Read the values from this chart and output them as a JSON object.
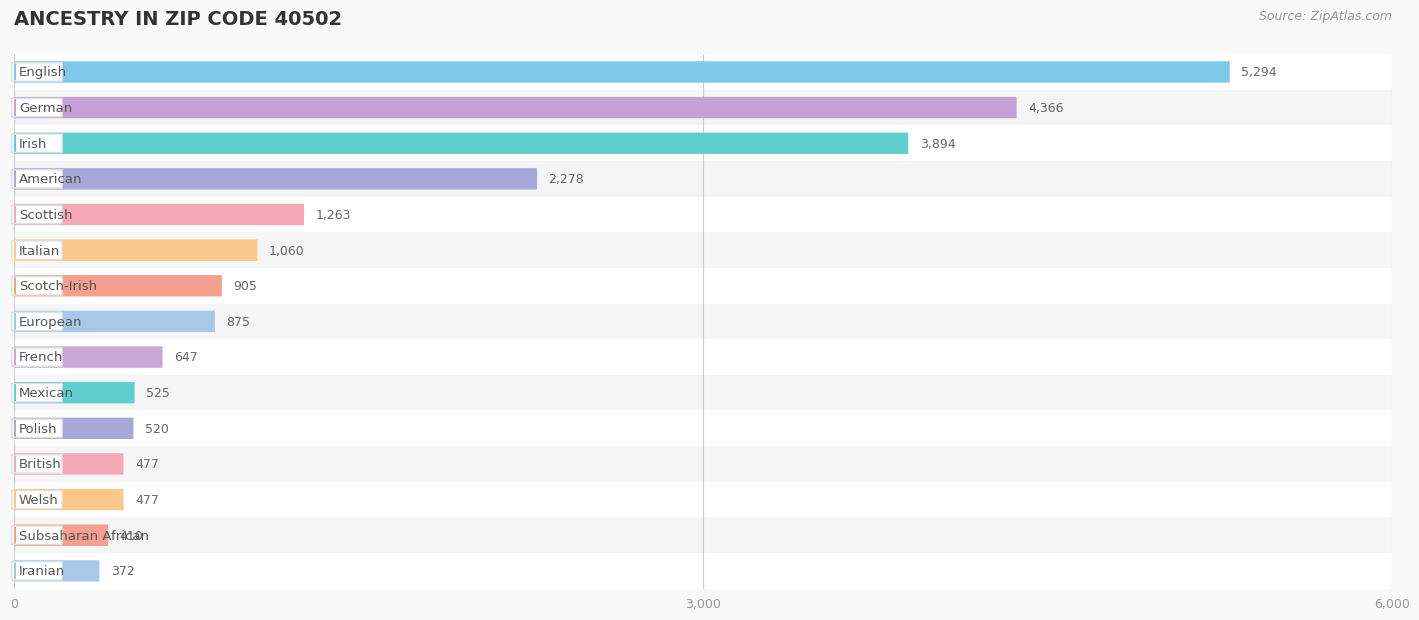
{
  "title": "ANCESTRY IN ZIP CODE 40502",
  "source": "Source: ZipAtlas.com",
  "categories": [
    "English",
    "German",
    "Irish",
    "American",
    "Scottish",
    "Italian",
    "Scotch-Irish",
    "European",
    "French",
    "Mexican",
    "Polish",
    "British",
    "Welsh",
    "Subsaharan African",
    "Iranian"
  ],
  "values": [
    5294,
    4366,
    3894,
    2278,
    1263,
    1060,
    905,
    875,
    647,
    525,
    520,
    477,
    477,
    410,
    372
  ],
  "bar_colors": [
    "#7EC8E8",
    "#C8A0D8",
    "#5ECECE",
    "#A8A8D8",
    "#F4A8B8",
    "#F9C88A",
    "#F4A090",
    "#A8C8E8",
    "#C8A8D8",
    "#5ECECE",
    "#A8A8D8",
    "#F4A8B8",
    "#F9C88A",
    "#F4A090",
    "#A8C8E8"
  ],
  "xlim": [
    0,
    6000
  ],
  "xticks": [
    0,
    3000,
    6000
  ],
  "xtick_labels": [
    "0",
    "3,000",
    "6,000"
  ],
  "background_color": "#f9f9f9",
  "row_colors": [
    "#ffffff",
    "#f5f5f5"
  ],
  "title_fontsize": 14,
  "source_fontsize": 9,
  "label_fontsize": 9.5,
  "value_fontsize": 9
}
